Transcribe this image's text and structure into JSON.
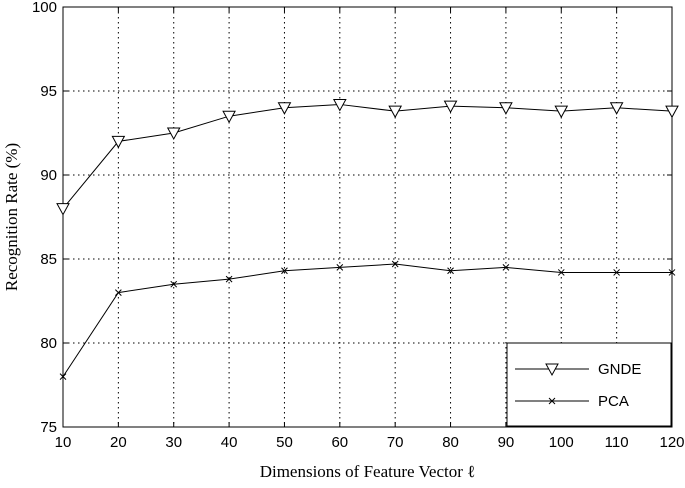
{
  "chart_data": {
    "type": "line",
    "xlabel": "Dimensions of Feature Vector ℓ",
    "ylabel": "Recognition Rate (%)",
    "x": [
      10,
      20,
      30,
      40,
      50,
      60,
      70,
      80,
      90,
      100,
      110,
      120
    ],
    "xlim": [
      10,
      120
    ],
    "ylim": [
      75,
      100
    ],
    "xticks": [
      10,
      20,
      30,
      40,
      50,
      60,
      70,
      80,
      90,
      100,
      110,
      120
    ],
    "yticks": [
      75,
      80,
      85,
      90,
      95,
      100
    ],
    "grid": true,
    "legend_position": "bottom-right",
    "series": [
      {
        "name": "GNDE",
        "marker": "triangle-down",
        "values": [
          88.0,
          92.0,
          92.5,
          93.5,
          94.0,
          94.2,
          93.8,
          94.1,
          94.0,
          93.8,
          94.0,
          93.8
        ]
      },
      {
        "name": "PCA",
        "marker": "x",
        "values": [
          78.0,
          83.0,
          83.5,
          83.8,
          84.3,
          84.5,
          84.7,
          84.3,
          84.5,
          84.2,
          84.2,
          84.2
        ]
      }
    ]
  }
}
